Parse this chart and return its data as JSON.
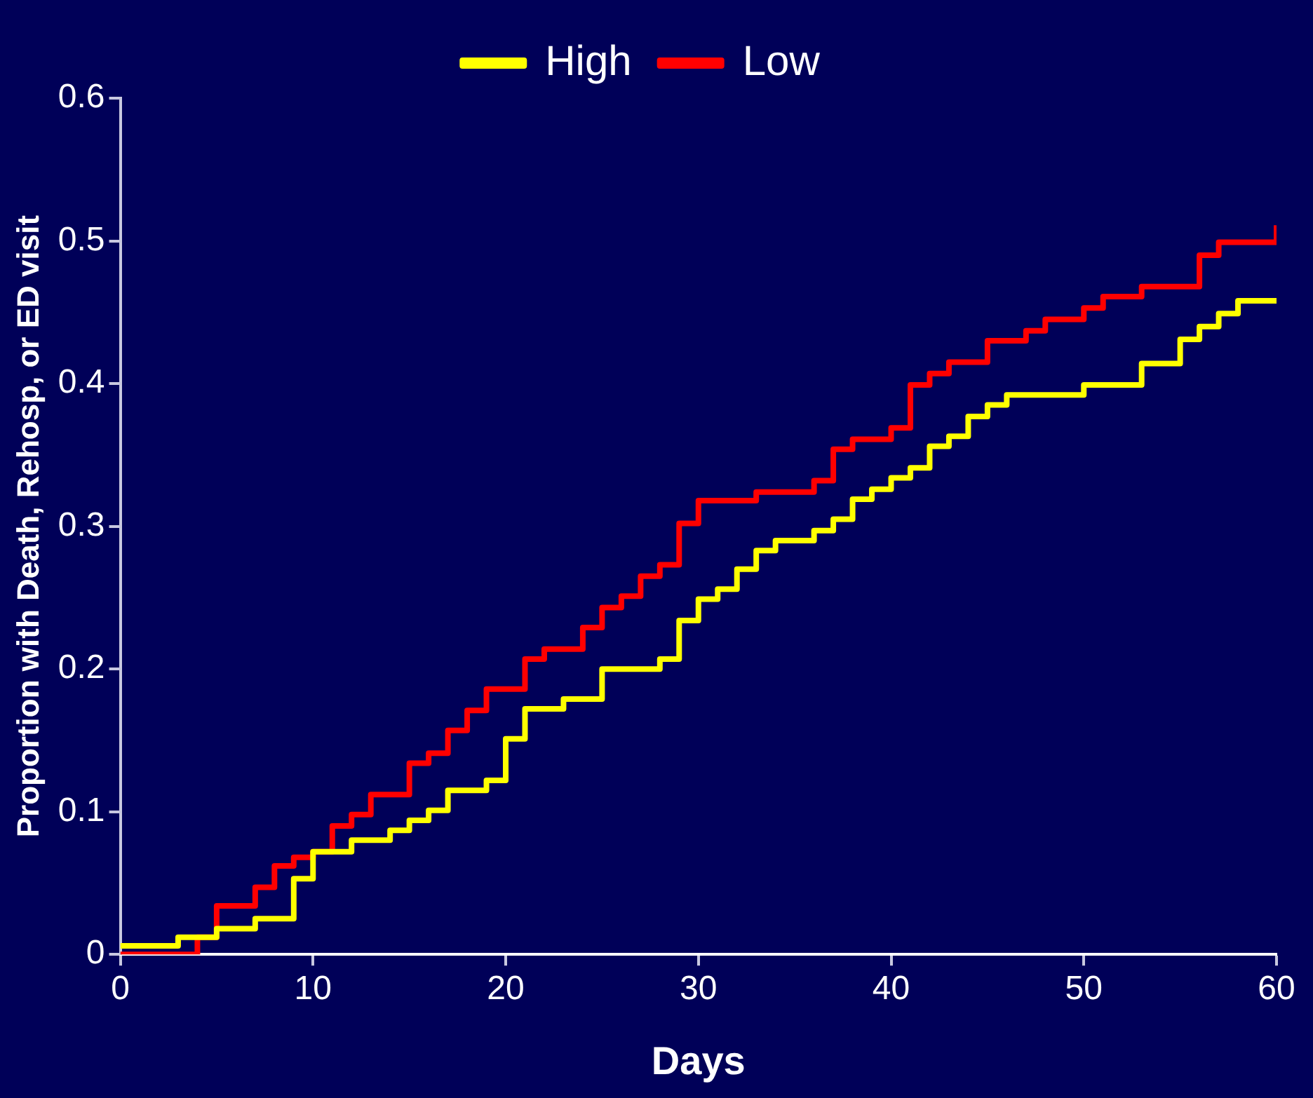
{
  "chart_data": {
    "type": "step",
    "xlabel": "Days",
    "ylabel": "Proportion with Death, Rehosp, or ED visit",
    "xlim": [
      0,
      60
    ],
    "xticks": [
      0,
      10,
      20,
      30,
      40,
      50,
      60
    ],
    "ylim": [
      0,
      0.6
    ],
    "yticks": [
      0,
      0.1,
      0.2,
      0.3,
      0.4,
      0.5,
      0.6
    ],
    "grid": false,
    "legend": "top",
    "line_style": "solid",
    "marker": "none",
    "series": [
      {
        "name": "High",
        "color": "#ffff00",
        "x": [
          0,
          3,
          5,
          7,
          9,
          10,
          12,
          14,
          15,
          16,
          17,
          19,
          20,
          21,
          23,
          25,
          28,
          29,
          30,
          31,
          32,
          33,
          34,
          36,
          37,
          38,
          39,
          40,
          41,
          42,
          43,
          44,
          45,
          46,
          50,
          53,
          55,
          56,
          57,
          58,
          60
        ],
        "values": [
          0.006,
          0.012,
          0.018,
          0.025,
          0.053,
          0.072,
          0.08,
          0.087,
          0.094,
          0.101,
          0.115,
          0.122,
          0.151,
          0.172,
          0.179,
          0.2,
          0.207,
          0.234,
          0.249,
          0.256,
          0.27,
          0.283,
          0.29,
          0.297,
          0.305,
          0.319,
          0.326,
          0.334,
          0.341,
          0.356,
          0.363,
          0.377,
          0.385,
          0.392,
          0.399,
          0.414,
          0.431,
          0.44,
          0.449,
          0.458,
          0.458
        ]
      },
      {
        "name": "Low",
        "color": "#ff0000",
        "x": [
          0,
          4,
          5,
          7,
          8,
          9,
          10,
          11,
          12,
          13,
          15,
          16,
          17,
          18,
          19,
          21,
          22,
          24,
          25,
          26,
          27,
          28,
          29,
          30,
          33,
          36,
          37,
          38,
          40,
          41,
          42,
          43,
          45,
          47,
          48,
          50,
          51,
          53,
          56,
          57,
          60
        ],
        "values": [
          0,
          0.012,
          0.034,
          0.047,
          0.062,
          0.068,
          0.072,
          0.09,
          0.098,
          0.112,
          0.134,
          0.141,
          0.157,
          0.171,
          0.186,
          0.207,
          0.214,
          0.229,
          0.243,
          0.251,
          0.265,
          0.273,
          0.302,
          0.318,
          0.324,
          0.332,
          0.354,
          0.361,
          0.369,
          0.399,
          0.407,
          0.415,
          0.43,
          0.437,
          0.445,
          0.453,
          0.461,
          0.468,
          0.49,
          0.499,
          0.511
        ]
      }
    ]
  }
}
